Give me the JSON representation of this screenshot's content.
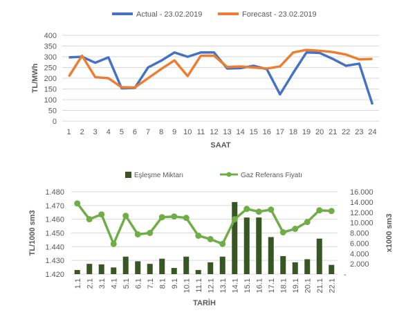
{
  "chart_data": [
    {
      "type": "line",
      "title": "",
      "xlabel": "SAAT",
      "ylabel": "TL/MWh",
      "ylim": [
        0,
        400
      ],
      "yticks": [
        0,
        50,
        100,
        150,
        200,
        250,
        300,
        350,
        400
      ],
      "grid": true,
      "legend": "top",
      "x": [
        "1",
        "2",
        "3",
        "4",
        "5",
        "6",
        "7",
        "8",
        "9",
        "10",
        "11",
        "12",
        "13",
        "14",
        "15",
        "16",
        "17",
        "18",
        "19",
        "20",
        "21",
        "22",
        "23",
        "24"
      ],
      "series": [
        {
          "name": "Actual - 23.02.2019",
          "color": "#4472c4",
          "values": [
            297,
            300,
            272,
            297,
            153,
            155,
            250,
            282,
            320,
            300,
            320,
            320,
            245,
            247,
            258,
            242,
            125,
            225,
            320,
            318,
            290,
            258,
            268,
            78
          ]
        },
        {
          "name": "Forecast - 23.02.2019",
          "color": "#ed7d31",
          "values": [
            208,
            305,
            205,
            200,
            158,
            157,
            200,
            243,
            283,
            210,
            305,
            305,
            252,
            255,
            250,
            245,
            255,
            320,
            332,
            328,
            322,
            310,
            288,
            290
          ]
        }
      ]
    },
    {
      "type": "bar+line",
      "title": "",
      "xlabel": "TARİH",
      "ylabel": "TL/1000 sm3",
      "y2label": "x1000 sm3",
      "ylim": [
        1.42,
        1.48
      ],
      "yticks": [
        "1.420",
        "1.430",
        "1.440",
        "1.450",
        "1.460",
        "1.470",
        "1.480"
      ],
      "y2lim": [
        0,
        16000
      ],
      "y2ticks": [
        "-",
        "2.000",
        "4.000",
        "6.000",
        "8.000",
        "10.000",
        "12.000",
        "14.000",
        "16.000"
      ],
      "grid": true,
      "legend": "top",
      "x": [
        "1.1",
        "2.1",
        "3.1",
        "4.1",
        "5.1",
        "6.1",
        "7.1",
        "8.1",
        "9.1",
        "10.1",
        "11.1",
        "12.1",
        "13.1",
        "14.1",
        "15.1",
        "16.1",
        "17.1",
        "18.1",
        "19.1",
        "20.1",
        "21.1",
        "22.1"
      ],
      "series": [
        {
          "name": "Eşleşme Miktarı",
          "kind": "bar",
          "axis": "right",
          "color": "#375623",
          "values": [
            800,
            2000,
            1900,
            1300,
            3400,
            2500,
            2000,
            3000,
            1200,
            3400,
            800,
            2300,
            3400,
            14000,
            11000,
            11000,
            7200,
            3500,
            2300,
            2900,
            6900,
            1800
          ]
        },
        {
          "name": "Gaz Referans Fiyatı",
          "kind": "line",
          "axis": "left",
          "color": "#70ad47",
          "values": [
            1.4715,
            1.46,
            1.4635,
            1.442,
            1.4625,
            1.449,
            1.45,
            1.4615,
            1.462,
            1.461,
            1.448,
            1.4455,
            1.442,
            1.46,
            1.4675,
            1.4655,
            1.467,
            1.4505,
            1.453,
            1.458,
            1.4665,
            1.466
          ]
        }
      ]
    }
  ]
}
